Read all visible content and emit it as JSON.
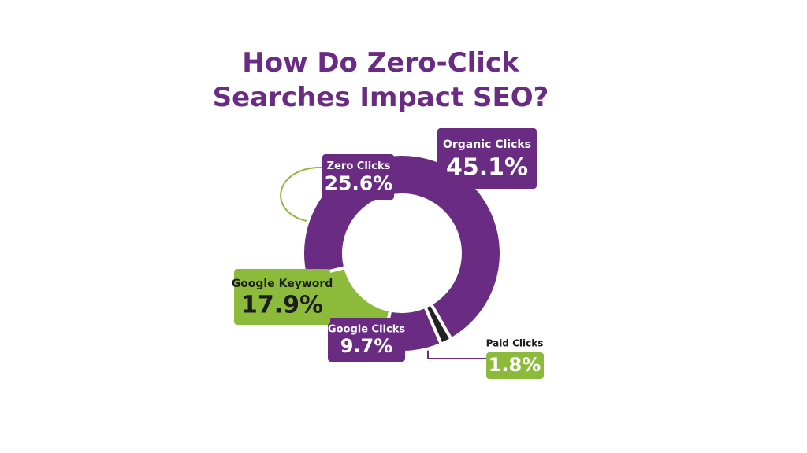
{
  "chart_data": {
    "type": "donut",
    "title": "How Do Zero-Click Searches Impact SEO?",
    "categories": [
      "Organic Clicks",
      "Paid Clicks",
      "Google Clicks",
      "Google Keyword",
      "Zero Clicks"
    ],
    "values": [
      45.1,
      1.8,
      9.7,
      17.9,
      25.6
    ],
    "value_labels": [
      "45.1%",
      "1.8%",
      "9.7%",
      "17.9%",
      "25.6%"
    ],
    "colors": [
      "#6a2c82",
      "#232323",
      "#6a2c82",
      "#8cbb3c",
      "#6a2c82"
    ]
  }
}
